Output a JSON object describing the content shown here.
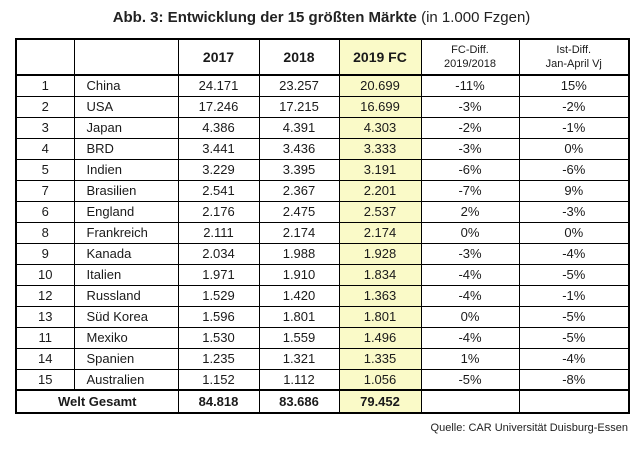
{
  "title": {
    "main": "Abb. 3: Entwicklung der 15 größten Märkte",
    "suffix": " (in 1.000 Fzgen)"
  },
  "colors": {
    "highlight": "#FAFAC8",
    "border": "#000000"
  },
  "table": {
    "headers": {
      "rank": "",
      "country": "",
      "y2017": "2017",
      "y2018": "2018",
      "fc2019": "2019 FC",
      "fc_diff_line1": "FC-Diff.",
      "fc_diff_line2": "2019/2018",
      "ist_diff_line1": "Ist-Diff.",
      "ist_diff_line2": "Jan-April Vj"
    },
    "rows": [
      {
        "rank": "1",
        "country": "China",
        "y2017": "24.171",
        "y2018": "23.257",
        "fc2019": "20.699",
        "fc_diff": "-11%",
        "ist_diff": "15%"
      },
      {
        "rank": "2",
        "country": "USA",
        "y2017": "17.246",
        "y2018": "17.215",
        "fc2019": "16.699",
        "fc_diff": "-3%",
        "ist_diff": "-2%"
      },
      {
        "rank": "3",
        "country": "Japan",
        "y2017": "4.386",
        "y2018": "4.391",
        "fc2019": "4.303",
        "fc_diff": "-2%",
        "ist_diff": "-1%"
      },
      {
        "rank": "4",
        "country": "BRD",
        "y2017": "3.441",
        "y2018": "3.436",
        "fc2019": "3.333",
        "fc_diff": "-3%",
        "ist_diff": "0%"
      },
      {
        "rank": "5",
        "country": "Indien",
        "y2017": "3.229",
        "y2018": "3.395",
        "fc2019": "3.191",
        "fc_diff": "-6%",
        "ist_diff": "-6%"
      },
      {
        "rank": "7",
        "country": "Brasilien",
        "y2017": "2.541",
        "y2018": "2.367",
        "fc2019": "2.201",
        "fc_diff": "-7%",
        "ist_diff": "9%"
      },
      {
        "rank": "6",
        "country": "England",
        "y2017": "2.176",
        "y2018": "2.475",
        "fc2019": "2.537",
        "fc_diff": "2%",
        "ist_diff": "-3%"
      },
      {
        "rank": "8",
        "country": "Frankreich",
        "y2017": "2.111",
        "y2018": "2.174",
        "fc2019": "2.174",
        "fc_diff": "0%",
        "ist_diff": "0%"
      },
      {
        "rank": "9",
        "country": "Kanada",
        "y2017": "2.034",
        "y2018": "1.988",
        "fc2019": "1.928",
        "fc_diff": "-3%",
        "ist_diff": "-4%"
      },
      {
        "rank": "10",
        "country": "Italien",
        "y2017": "1.971",
        "y2018": "1.910",
        "fc2019": "1.834",
        "fc_diff": "-4%",
        "ist_diff": "-5%"
      },
      {
        "rank": "12",
        "country": "Russland",
        "y2017": "1.529",
        "y2018": "1.420",
        "fc2019": "1.363",
        "fc_diff": "-4%",
        "ist_diff": "-1%"
      },
      {
        "rank": "13",
        "country": "Süd Korea",
        "y2017": "1.596",
        "y2018": "1.801",
        "fc2019": "1.801",
        "fc_diff": "0%",
        "ist_diff": "-5%"
      },
      {
        "rank": "11",
        "country": "Mexiko",
        "y2017": "1.530",
        "y2018": "1.559",
        "fc2019": "1.496",
        "fc_diff": "-4%",
        "ist_diff": "-5%"
      },
      {
        "rank": "14",
        "country": "Spanien",
        "y2017": "1.235",
        "y2018": "1.321",
        "fc2019": "1.335",
        "fc_diff": "1%",
        "ist_diff": "-4%"
      },
      {
        "rank": "15",
        "country": "Australien",
        "y2017": "1.152",
        "y2018": "1.112",
        "fc2019": "1.056",
        "fc_diff": "-5%",
        "ist_diff": "-8%"
      }
    ],
    "total": {
      "label": "Welt Gesamt",
      "y2017": "84.818",
      "y2018": "83.686",
      "fc2019": "79.452",
      "fc_diff": "",
      "ist_diff": ""
    }
  },
  "footer": {
    "source": "Quelle: CAR Universität Duisburg-Essen"
  }
}
